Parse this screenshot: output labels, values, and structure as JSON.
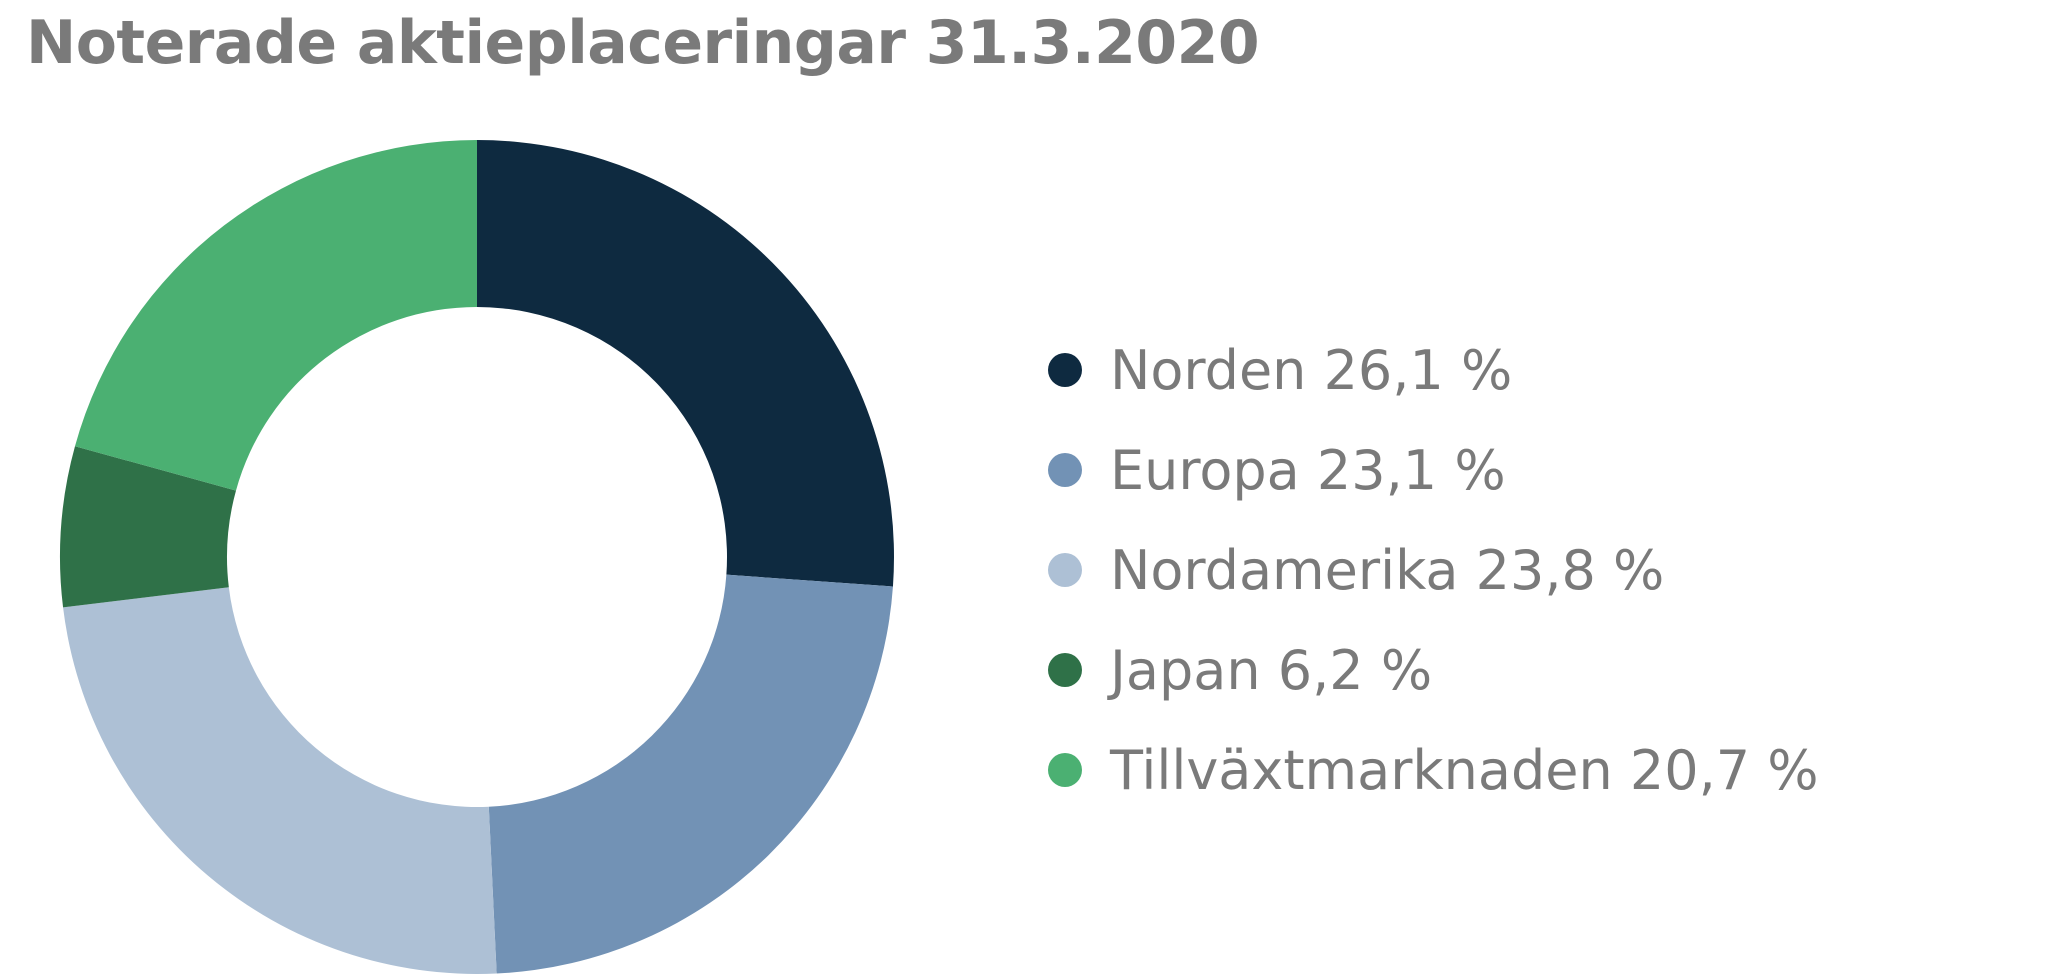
{
  "chart_data": {
    "type": "pie",
    "variant": "donut",
    "title": "Noterade aktieplaceringar 31.3.2020",
    "series": [
      {
        "name": "Norden",
        "value": 26.1,
        "label": "Norden 26,1 %",
        "color": "#0e2a40"
      },
      {
        "name": "Europa",
        "value": 23.1,
        "label": "Europa 23,1 %",
        "color": "#7292b5"
      },
      {
        "name": "Nordamerika",
        "value": 23.8,
        "label": "Nordamerika 23,8 %",
        "color": "#adc0d5"
      },
      {
        "name": "Japan",
        "value": 6.2,
        "label": "Japan 6,2 %",
        "color": "#2f7148"
      },
      {
        "name": "Tillväxtmarknaden",
        "value": 20.7,
        "label": "Tillväxtmarknaden 20,7 %",
        "color": "#4bb072"
      }
    ],
    "start": "12 o'clock",
    "direction": "clockwise",
    "legend_placement": "right"
  }
}
